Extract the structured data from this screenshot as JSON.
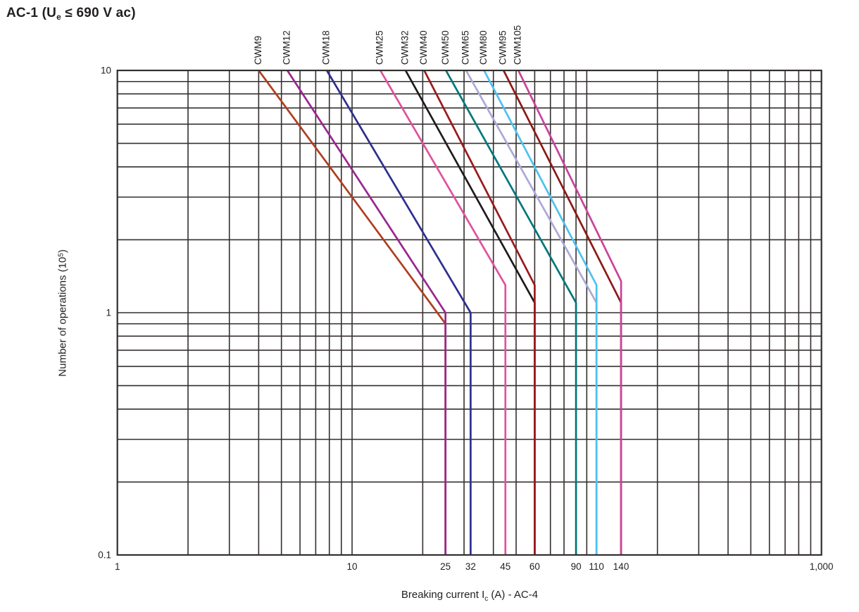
{
  "title": {
    "pre": "AC-1 (U",
    "sub": "e",
    "post": " ≤ 690 V ac)"
  },
  "chart_data": {
    "type": "line",
    "scale": "log-log",
    "title": "AC-1 (Ue ≤ 690 V ac)",
    "xlabel": {
      "pre": "Breaking current I",
      "sub": "c",
      "post": " (A) - AC-4"
    },
    "ylabel": {
      "pre": "Number of operations (10",
      "sup": "5",
      "post": ")"
    },
    "xlim": [
      1,
      1000
    ],
    "ylim": [
      0.1,
      10
    ],
    "grid": "log minor gridlines on both axes, dark gray, full frame border",
    "legend_position": "rotated labels above top of each curve",
    "x_ticks": [
      {
        "value": 1,
        "label": "1"
      },
      {
        "value": 10,
        "label": "10"
      },
      {
        "value": 25,
        "label": "25"
      },
      {
        "value": 32,
        "label": "32"
      },
      {
        "value": 45,
        "label": "45"
      },
      {
        "value": 60,
        "label": "60"
      },
      {
        "value": 90,
        "label": "90"
      },
      {
        "value": 110,
        "label": "110"
      },
      {
        "value": 140,
        "label": "140"
      },
      {
        "value": 1000,
        "label": "1,000"
      }
    ],
    "y_ticks": [
      {
        "value": 10,
        "label": "10"
      },
      {
        "value": 1,
        "label": "1"
      },
      {
        "value": 0.1,
        "label": "0.1"
      }
    ],
    "series": [
      {
        "name": "CWM9",
        "color": "#AF3E1F",
        "points": [
          [
            4.0,
            10
          ],
          [
            25,
            0.9
          ],
          [
            25,
            0.1
          ]
        ]
      },
      {
        "name": "CWM12",
        "color": "#99268F",
        "points": [
          [
            5.3,
            10
          ],
          [
            25,
            1.0
          ],
          [
            25,
            0.1
          ]
        ]
      },
      {
        "name": "CWM18",
        "color": "#2D2F8F",
        "points": [
          [
            7.8,
            10
          ],
          [
            32,
            1.0
          ],
          [
            32,
            0.1
          ]
        ]
      },
      {
        "name": "CWM25",
        "color": "#E0519E",
        "points": [
          [
            13.2,
            10
          ],
          [
            45,
            1.3
          ],
          [
            45,
            0.1
          ]
        ]
      },
      {
        "name": "CWM32",
        "color": "#1F1B1C",
        "points": [
          [
            16.9,
            10
          ],
          [
            60,
            1.1
          ],
          [
            60,
            0.1
          ]
        ]
      },
      {
        "name": "CWM40",
        "color": "#9A1A1D",
        "points": [
          [
            20.3,
            10
          ],
          [
            60,
            1.3
          ],
          [
            60,
            0.1
          ]
        ]
      },
      {
        "name": "CWM50",
        "color": "#00777B",
        "points": [
          [
            25.1,
            10
          ],
          [
            90,
            1.1
          ],
          [
            90,
            0.1
          ]
        ]
      },
      {
        "name": "CWM65",
        "color": "#ACA8D5",
        "points": [
          [
            30.6,
            10
          ],
          [
            110,
            1.1
          ],
          [
            110,
            0.1
          ]
        ]
      },
      {
        "name": "CWM80",
        "color": "#4EC1EF",
        "points": [
          [
            36.5,
            10
          ],
          [
            110,
            1.3
          ],
          [
            110,
            0.1
          ]
        ]
      },
      {
        "name": "CWM95",
        "color": "#8C1A17",
        "points": [
          [
            44.2,
            10
          ],
          [
            140,
            1.1
          ],
          [
            140,
            0.1
          ]
        ]
      },
      {
        "name": "CWM105",
        "color": "#C94399",
        "points": [
          [
            51.1,
            10
          ],
          [
            140,
            1.35
          ],
          [
            140,
            0.1
          ]
        ]
      }
    ],
    "style": {
      "grid_color": "#332F2E",
      "text_color": "#231f20"
    }
  }
}
